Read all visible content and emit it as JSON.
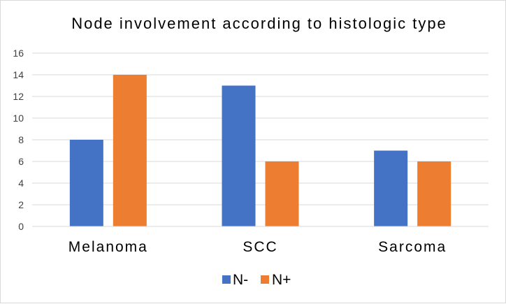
{
  "chart_data": {
    "type": "bar",
    "title": "Node involvement according to histologic type",
    "categories": [
      "Melanoma",
      "SCC",
      "Sarcoma"
    ],
    "series": [
      {
        "name": "N-",
        "values": [
          8,
          13,
          7
        ],
        "color": "#4472c4"
      },
      {
        "name": "N+",
        "values": [
          14,
          6,
          6
        ],
        "color": "#ed7d31"
      }
    ],
    "ylim": [
      0,
      16
    ],
    "yticks": [
      "0",
      "2",
      "4",
      "6",
      "8",
      "10",
      "12",
      "14",
      "16"
    ],
    "grid": true,
    "legend": "bottom"
  }
}
